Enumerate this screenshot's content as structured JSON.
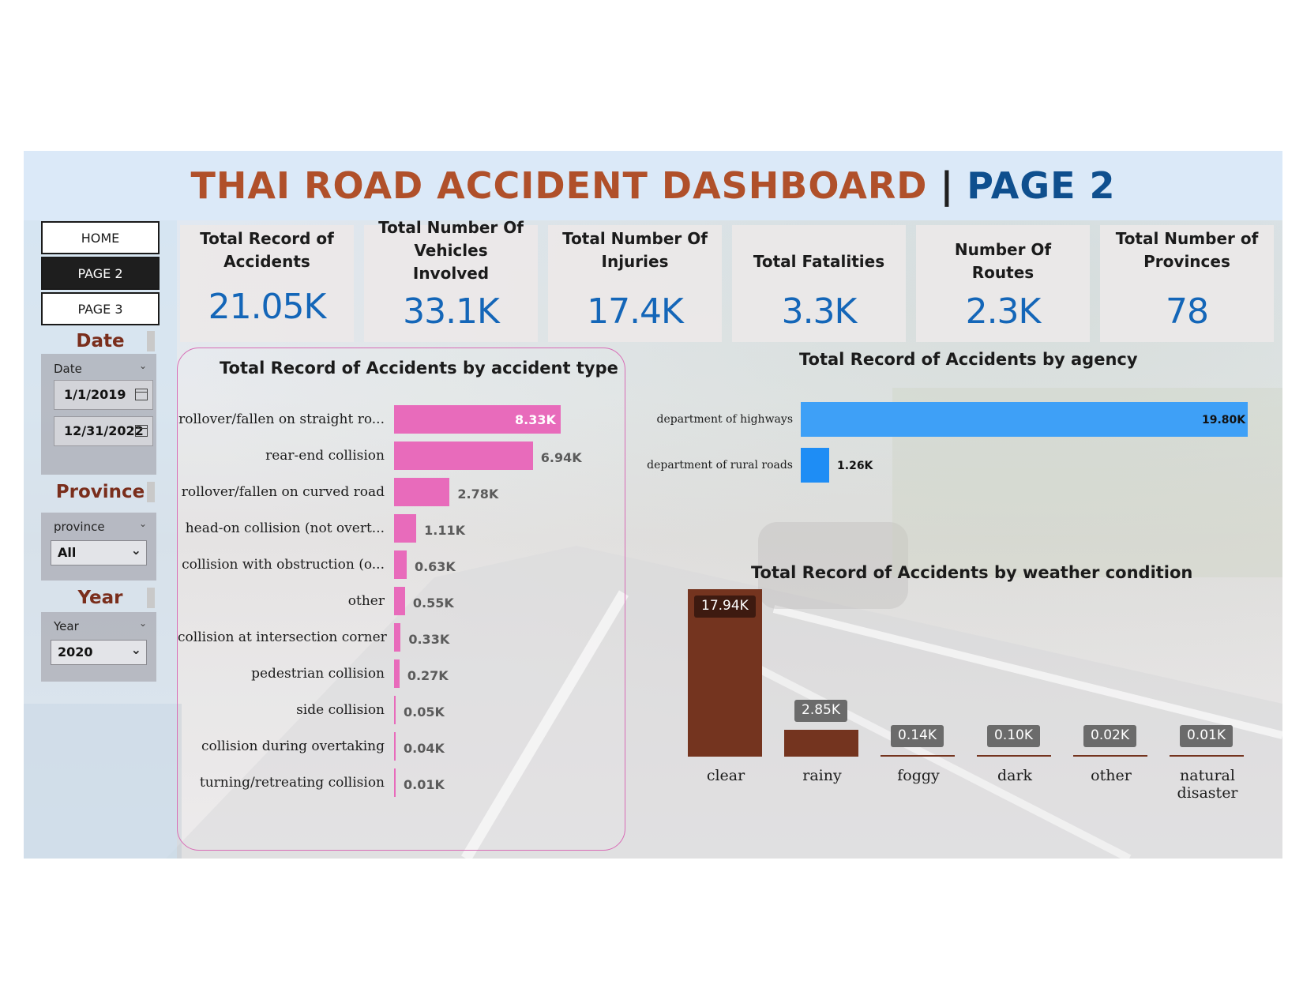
{
  "title": {
    "main": "THAI ROAD ACCIDENT DASHBOARD",
    "separator": "|",
    "page": "PAGE 2"
  },
  "nav": {
    "items": [
      "HOME",
      "PAGE 2",
      "PAGE 3"
    ],
    "active": "PAGE 2"
  },
  "filters": {
    "date": {
      "heading": "Date",
      "label": "Date",
      "start": "1/1/2019",
      "end": "12/31/2022"
    },
    "province": {
      "heading": "Province",
      "label": "province",
      "selected": "All"
    },
    "year": {
      "heading": "Year",
      "label": "Year",
      "selected": "2020"
    }
  },
  "kpis": [
    {
      "label": "Total Record of Accidents",
      "value": "21.05K"
    },
    {
      "label": "Total Number Of Vehicles Involved",
      "value": "33.1K"
    },
    {
      "label": "Total Number Of Injuries",
      "value": "17.4K"
    },
    {
      "label": "Total Fatalities",
      "value": "3.3K"
    },
    {
      "label": "Number Of Routes",
      "value": "2.3K"
    },
    {
      "label": "Total Number of Provinces",
      "value": "78"
    }
  ],
  "colors": {
    "accident_type_bar": "#e86bbb",
    "agency_bar_1": "#3ea0f7",
    "agency_bar_2": "#1e8df5",
    "weather_bar": "#74341f",
    "kpi_value": "#1466b8",
    "title_main": "#b0502a",
    "title_page": "#0f4f8e"
  },
  "chart_data": [
    {
      "type": "bar",
      "orientation": "horizontal",
      "title": "Total Record of Accidents by accident type",
      "categories": [
        "rollover/fallen on straight ro...",
        "rear-end collision",
        "rollover/fallen on curved road",
        "head-on collision (not overt...",
        "collision with obstruction (o...",
        "other",
        "collision at intersection corner",
        "pedestrian collision",
        "side collision",
        "collision during overtaking",
        "turning/retreating collision"
      ],
      "values": [
        8.33,
        6.94,
        2.78,
        1.11,
        0.63,
        0.55,
        0.33,
        0.27,
        0.05,
        0.04,
        0.01
      ],
      "value_labels": [
        "8.33K",
        "6.94K",
        "2.78K",
        "1.11K",
        "0.63K",
        "0.55K",
        "0.33K",
        "0.27K",
        "0.05K",
        "0.04K",
        "0.01K"
      ]
    },
    {
      "type": "bar",
      "orientation": "horizontal",
      "title": "Total Record of Accidents by agency",
      "categories": [
        "department of highways",
        "department of rural roads"
      ],
      "values": [
        19.8,
        1.26
      ],
      "value_labels": [
        "19.80K",
        "1.26K"
      ]
    },
    {
      "type": "bar",
      "orientation": "vertical",
      "title": "Total Record of Accidents by weather condition",
      "categories": [
        "clear",
        "rainy",
        "foggy",
        "dark",
        "other",
        "natural disaster"
      ],
      "values": [
        17.94,
        2.85,
        0.14,
        0.1,
        0.02,
        0.01
      ],
      "value_labels": [
        "17.94K",
        "2.85K",
        "0.14K",
        "0.10K",
        "0.02K",
        "0.01K"
      ]
    }
  ]
}
